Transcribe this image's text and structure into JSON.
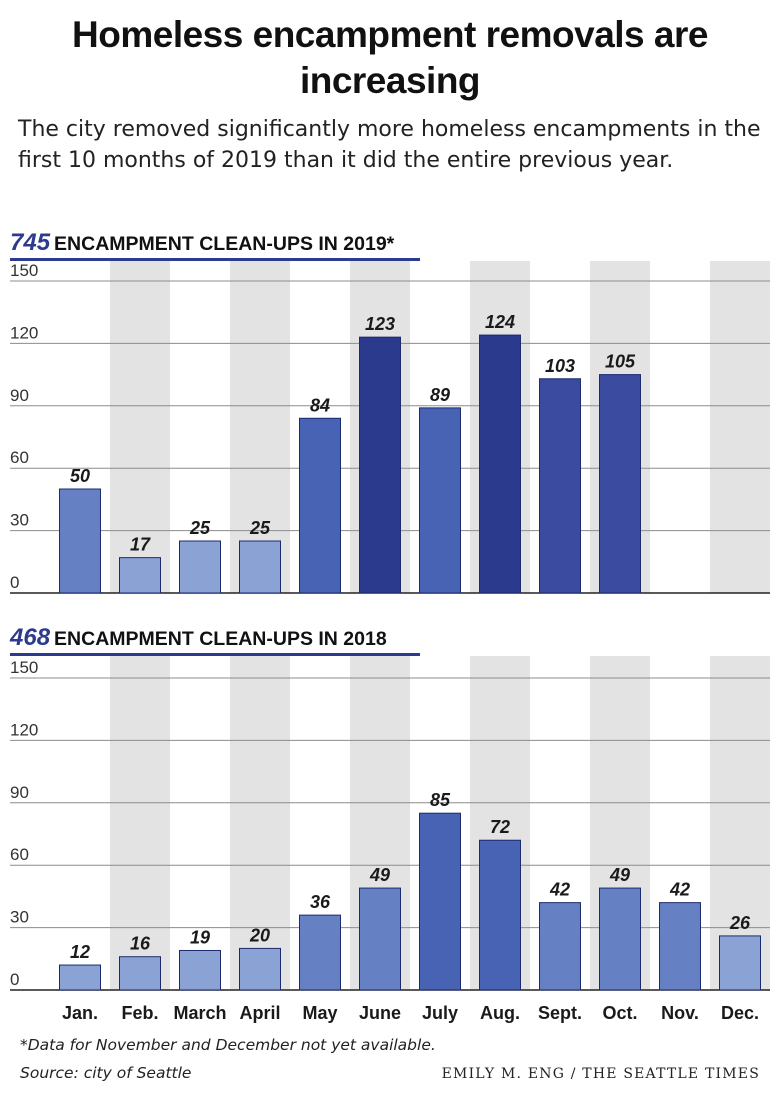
{
  "title": "Homeless encampment removals are increasing",
  "subtitle": "The city removed significantly more homeless encampments in the first 10 months of 2019 than it did the entire previous year.",
  "colors": {
    "accent": "#2c3a8f",
    "band": "#e3e3e3",
    "bar_light": "#8ba3d4",
    "bar_mid": "#6581c4",
    "bar_strong": "#4862b4",
    "bar_darker": "#3a4ba0",
    "bar_darkest": "#2b3a8c"
  },
  "chart_data": [
    {
      "type": "bar",
      "header_number": "745",
      "header_text": "ENCAMPMENT CLEAN-UPS IN 2019*",
      "categories": [
        "Jan.",
        "Feb.",
        "March",
        "April",
        "May",
        "June",
        "July",
        "Aug.",
        "Sept.",
        "Oct.",
        "Nov.",
        "Dec."
      ],
      "values": [
        50,
        17,
        25,
        25,
        84,
        123,
        89,
        124,
        103,
        105,
        null,
        null
      ],
      "ylim": [
        0,
        150
      ],
      "yticks": [
        0,
        30,
        60,
        90,
        120,
        150
      ],
      "show_category_labels": false,
      "grid": true
    },
    {
      "type": "bar",
      "header_number": "468",
      "header_text": "ENCAMPMENT CLEAN-UPS IN 2018",
      "categories": [
        "Jan.",
        "Feb.",
        "March",
        "April",
        "May",
        "June",
        "July",
        "Aug.",
        "Sept.",
        "Oct.",
        "Nov.",
        "Dec."
      ],
      "values": [
        12,
        16,
        19,
        20,
        36,
        49,
        85,
        72,
        42,
        49,
        42,
        26
      ],
      "ylim": [
        0,
        150
      ],
      "yticks": [
        0,
        30,
        60,
        90,
        120,
        150
      ],
      "show_category_labels": true,
      "grid": true
    }
  ],
  "footnote": "*Data for November and December not yet available.",
  "source": "Source: city of Seattle",
  "credit": "EMILY M. ENG / THE SEATTLE TIMES"
}
